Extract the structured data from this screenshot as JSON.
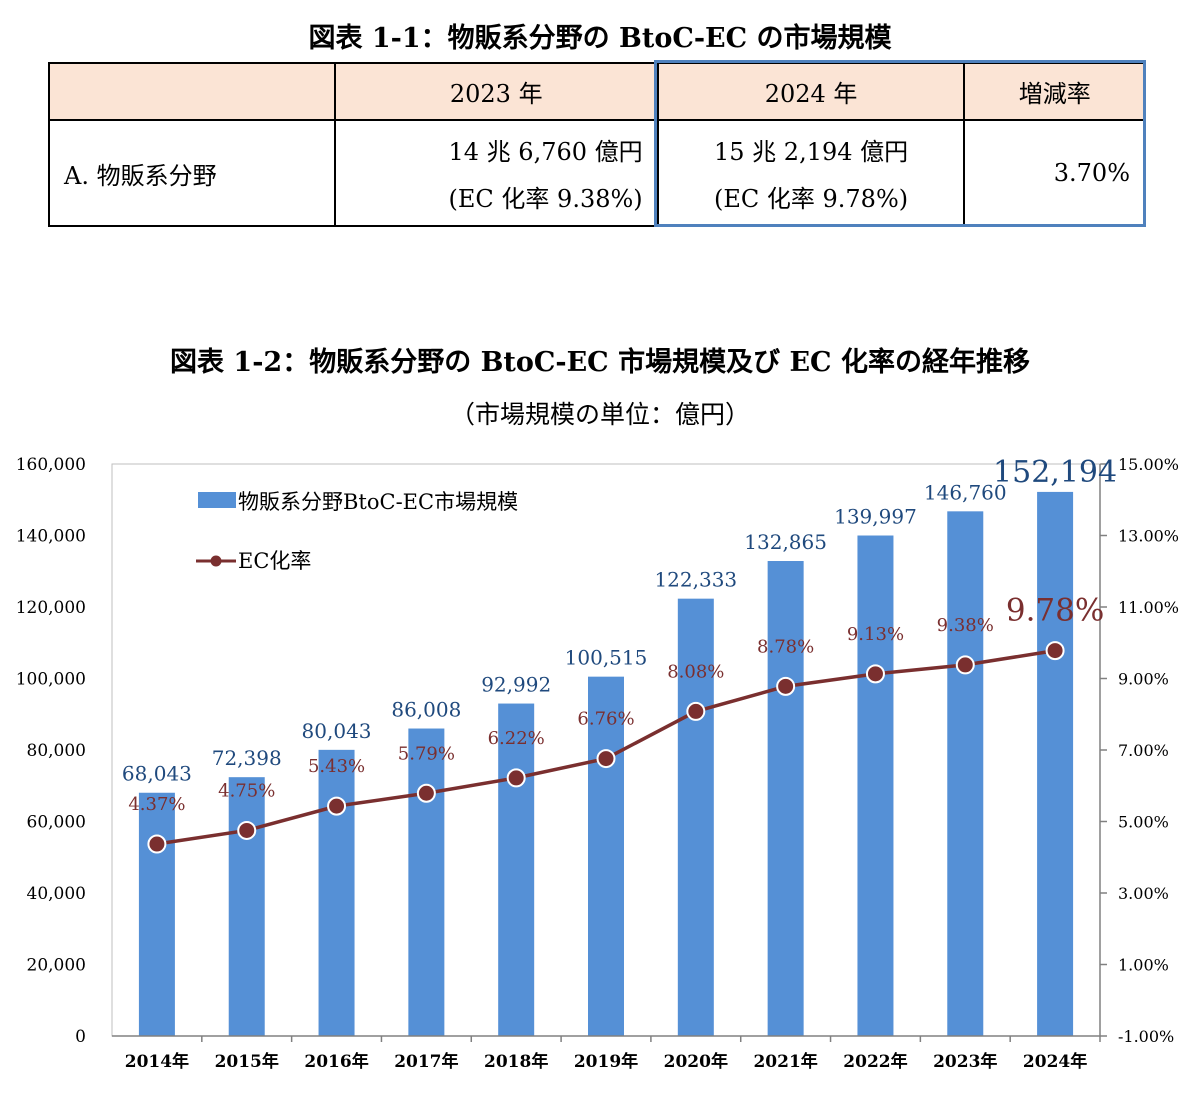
{
  "table1": {
    "title": "図表 1-1：物販系分野の BtoC-EC の市場規模",
    "headers": [
      "",
      "2023 年",
      "2024 年",
      "増減率"
    ],
    "row": {
      "label": "A. 物販系分野",
      "v2023_amount": "14 兆 6,760 億円",
      "v2023_rate": "(EC 化率 9.38%)",
      "v2024_amount": "15 兆 2,194 億円",
      "v2024_rate": "(EC 化率 9.78%)",
      "change": "3.70%"
    },
    "colors": {
      "header_bg": "#fbe4d5",
      "highlight_border": "#4f81bd"
    }
  },
  "chart2": {
    "title": "図表 1-2：物販系分野の BtoC-EC 市場規模及び EC 化率の経年推移",
    "subtitle": "（市場規模の単位：億円）"
  },
  "chart_data": {
    "type": "bar",
    "categories": [
      "2014年",
      "2015年",
      "2016年",
      "2017年",
      "2018年",
      "2019年",
      "2020年",
      "2021年",
      "2022年",
      "2023年",
      "2024年"
    ],
    "series": [
      {
        "name": "物販系分野BtoC-EC市場規模",
        "type": "bar",
        "axis": "left",
        "values": [
          68043,
          72398,
          80043,
          86008,
          92992,
          100515,
          122333,
          132865,
          139997,
          146760,
          152194
        ],
        "labels": [
          "68,043",
          "72,398",
          "80,043",
          "86,008",
          "92,992",
          "100,515",
          "122,333",
          "132,865",
          "139,997",
          "146,760",
          "152,194"
        ],
        "color": "#5590d6",
        "label_color": "#1f497d"
      },
      {
        "name": "EC化率",
        "type": "line",
        "axis": "right",
        "values": [
          4.37,
          4.75,
          5.43,
          5.79,
          6.22,
          6.76,
          8.08,
          8.78,
          9.13,
          9.38,
          9.78
        ],
        "labels": [
          "4.37%",
          "4.75%",
          "5.43%",
          "5.79%",
          "6.22%",
          "6.76%",
          "8.08%",
          "8.78%",
          "9.13%",
          "9.38%",
          "9.78%"
        ],
        "color": "#7a2f2f"
      }
    ],
    "ylim_left": [
      0,
      160000
    ],
    "ylim_right": [
      -1,
      15
    ],
    "left_ticks": [
      "0",
      "20,000",
      "40,000",
      "60,000",
      "80,000",
      "100,000",
      "120,000",
      "140,000",
      "160,000"
    ],
    "right_ticks": [
      "-1.00%",
      "1.00%",
      "3.00%",
      "5.00%",
      "7.00%",
      "9.00%",
      "11.00%",
      "13.00%",
      "15.00%"
    ],
    "legend_position": "top-left",
    "grid": false
  }
}
